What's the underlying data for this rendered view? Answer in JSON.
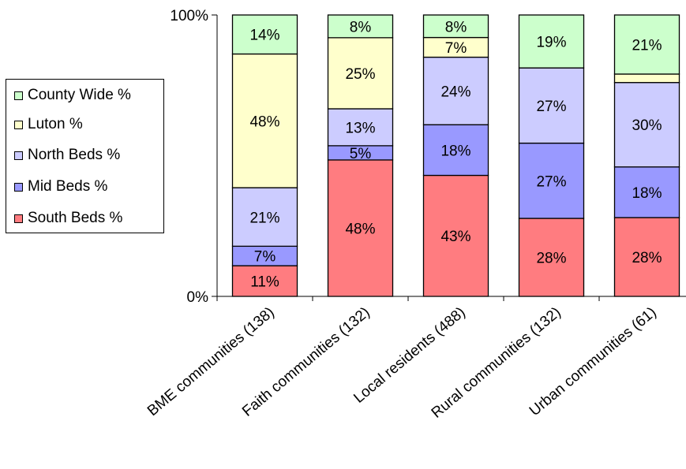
{
  "chart_data": {
    "type": "bar",
    "stacked": true,
    "normalized": true,
    "categories": [
      "BME communities (138)",
      "Faith communities (132)",
      "Local residents (488)",
      "Rural communities (132)",
      "Urban communities (61)"
    ],
    "series": [
      {
        "name": "South Beds %",
        "color": "#ff7c80",
        "values": [
          11,
          48,
          43,
          28,
          28
        ],
        "labels": [
          "11%",
          "48%",
          "43%",
          "28%",
          "28%"
        ]
      },
      {
        "name": "Mid Beds %",
        "color": "#9999ff",
        "values": [
          7,
          5,
          18,
          27,
          18
        ],
        "labels": [
          "7%",
          "5%",
          "18%",
          "27%",
          "18%"
        ]
      },
      {
        "name": "North Beds %",
        "color": "#ccccff",
        "values": [
          21,
          13,
          24,
          27,
          30
        ],
        "labels": [
          "21%",
          "13%",
          "24%",
          "27%",
          "30%"
        ]
      },
      {
        "name": "Luton %",
        "color": "#ffffcc",
        "values": [
          48,
          25,
          7,
          0,
          3
        ],
        "labels": [
          "48%",
          "25%",
          "7%",
          "",
          ""
        ]
      },
      {
        "name": "County Wide %",
        "color": "#ccffcc",
        "values": [
          14,
          8,
          8,
          19,
          21
        ],
        "labels": [
          "14%",
          "8%",
          "8%",
          "19%",
          "21%"
        ]
      }
    ],
    "yticks": [
      "0%",
      "100%"
    ],
    "ylim": [
      0,
      100
    ],
    "legend_position": "left",
    "legend_order": [
      "County Wide %",
      "Luton %",
      "North Beds %",
      "Mid Beds %",
      "South Beds %"
    ],
    "grid": false
  }
}
